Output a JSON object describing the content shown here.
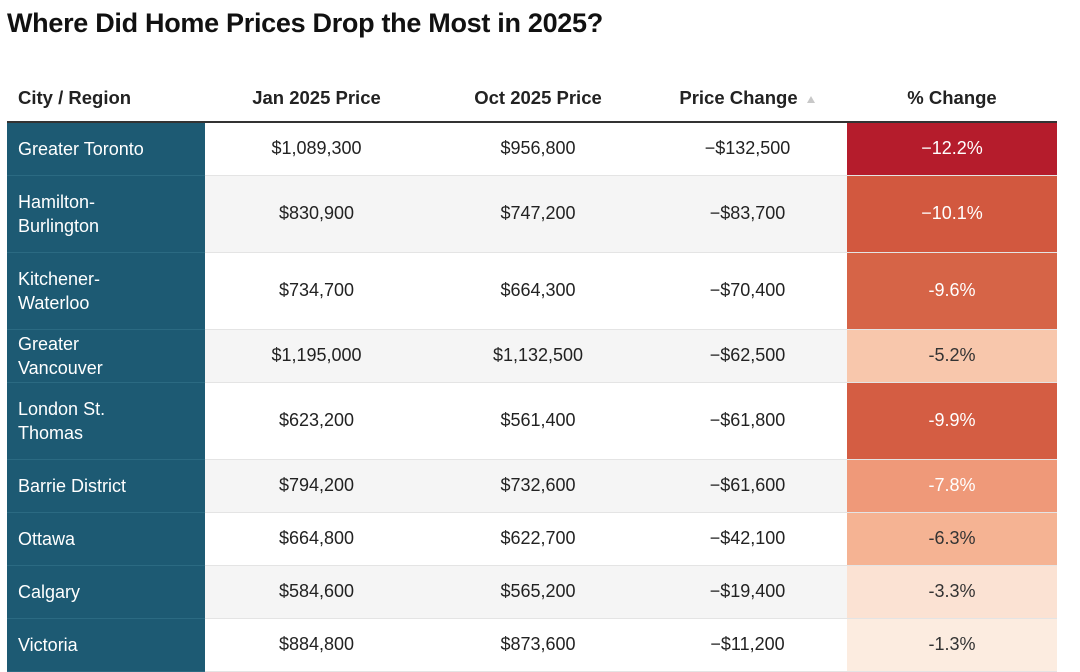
{
  "header": {
    "title": "Where Did Home Prices Drop the Most in 2025?"
  },
  "table": {
    "columns": [
      "City / Region",
      "Jan 2025 Price",
      "Oct 2025 Price",
      "Price Change",
      "% Change"
    ],
    "rows": [
      [
        "Greater Toronto",
        "$1,089,300",
        "$956,800",
        "−$132,500",
        "−12.2%"
      ],
      [
        "Hamilton-Burlington",
        "$830,900",
        "$747,200",
        "−$83,700",
        "−10.1%"
      ],
      [
        "Kitchener-Waterloo",
        "$734,700",
        "$664,300",
        "−$70,400",
        "-9.6%"
      ],
      [
        "Greater Vancouver",
        "$1,195,000",
        "$1,132,500",
        "−$62,500",
        "-5.2%"
      ],
      [
        "London St. Thomas",
        "$623,200",
        "$561,400",
        "−$61,800",
        "-9.9%"
      ],
      [
        "Barrie District",
        "$794,200",
        "$732,600",
        "−$61,600",
        "-7.8%"
      ],
      [
        "Ottawa",
        "$664,800",
        "$622,700",
        "−$42,100",
        "-6.3%"
      ],
      [
        "Calgary",
        "$584,600",
        "$565,200",
        "−$19,400",
        "-3.3%"
      ],
      [
        "Victoria",
        "$884,800",
        "$873,600",
        "−$11,200",
        "-1.3%"
      ]
    ],
    "pct_colors": [
      "#b51c2c",
      "#d2583f",
      "#d66447",
      "#f8c7ac",
      "#d45d43",
      "#ef9979",
      "#f5b393",
      "#fbe2d3",
      "#fcece0"
    ]
  }
}
